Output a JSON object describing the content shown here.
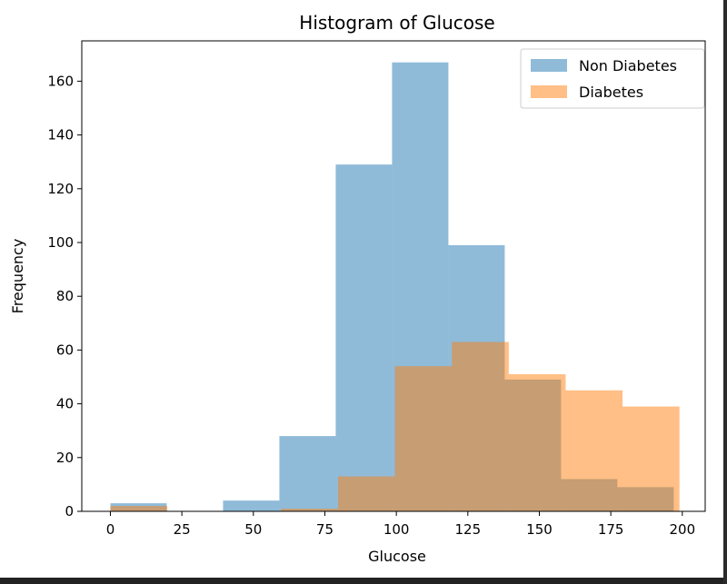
{
  "chart_data": {
    "type": "bar",
    "title": "Histogram of Glucose",
    "xlabel": "Glucose",
    "ylabel": "Frequency",
    "xlim": [
      -10,
      208
    ],
    "ylim": [
      0,
      175
    ],
    "x_ticks": [
      0,
      25,
      50,
      75,
      100,
      125,
      150,
      175,
      200
    ],
    "y_ticks": [
      0,
      20,
      40,
      60,
      80,
      100,
      120,
      140,
      160
    ],
    "grid": false,
    "legend_position": "top-right",
    "series": [
      {
        "name": "Non Diabetes",
        "color": "#1f77b4",
        "opacity": 0.5,
        "bins": [
          {
            "x0": 0,
            "x1": 19.7,
            "value": 3
          },
          {
            "x0": 19.7,
            "x1": 39.4,
            "value": 0
          },
          {
            "x0": 39.4,
            "x1": 59.1,
            "value": 4
          },
          {
            "x0": 59.1,
            "x1": 78.8,
            "value": 28
          },
          {
            "x0": 78.8,
            "x1": 98.5,
            "value": 129
          },
          {
            "x0": 98.5,
            "x1": 118.2,
            "value": 167
          },
          {
            "x0": 118.2,
            "x1": 137.9,
            "value": 99
          },
          {
            "x0": 137.9,
            "x1": 157.6,
            "value": 49
          },
          {
            "x0": 157.6,
            "x1": 177.3,
            "value": 12
          },
          {
            "x0": 177.3,
            "x1": 197.0,
            "value": 9
          }
        ]
      },
      {
        "name": "Diabetes",
        "color": "#ff7f0e",
        "opacity": 0.5,
        "bins": [
          {
            "x0": 0,
            "x1": 19.9,
            "value": 2
          },
          {
            "x0": 19.9,
            "x1": 39.8,
            "value": 0
          },
          {
            "x0": 39.8,
            "x1": 59.7,
            "value": 0
          },
          {
            "x0": 59.7,
            "x1": 79.6,
            "value": 1
          },
          {
            "x0": 79.6,
            "x1": 99.5,
            "value": 13
          },
          {
            "x0": 99.5,
            "x1": 119.4,
            "value": 54
          },
          {
            "x0": 119.4,
            "x1": 139.3,
            "value": 63
          },
          {
            "x0": 139.3,
            "x1": 159.2,
            "value": 51
          },
          {
            "x0": 159.2,
            "x1": 179.1,
            "value": 45
          },
          {
            "x0": 179.1,
            "x1": 199.0,
            "value": 39
          }
        ]
      }
    ]
  }
}
